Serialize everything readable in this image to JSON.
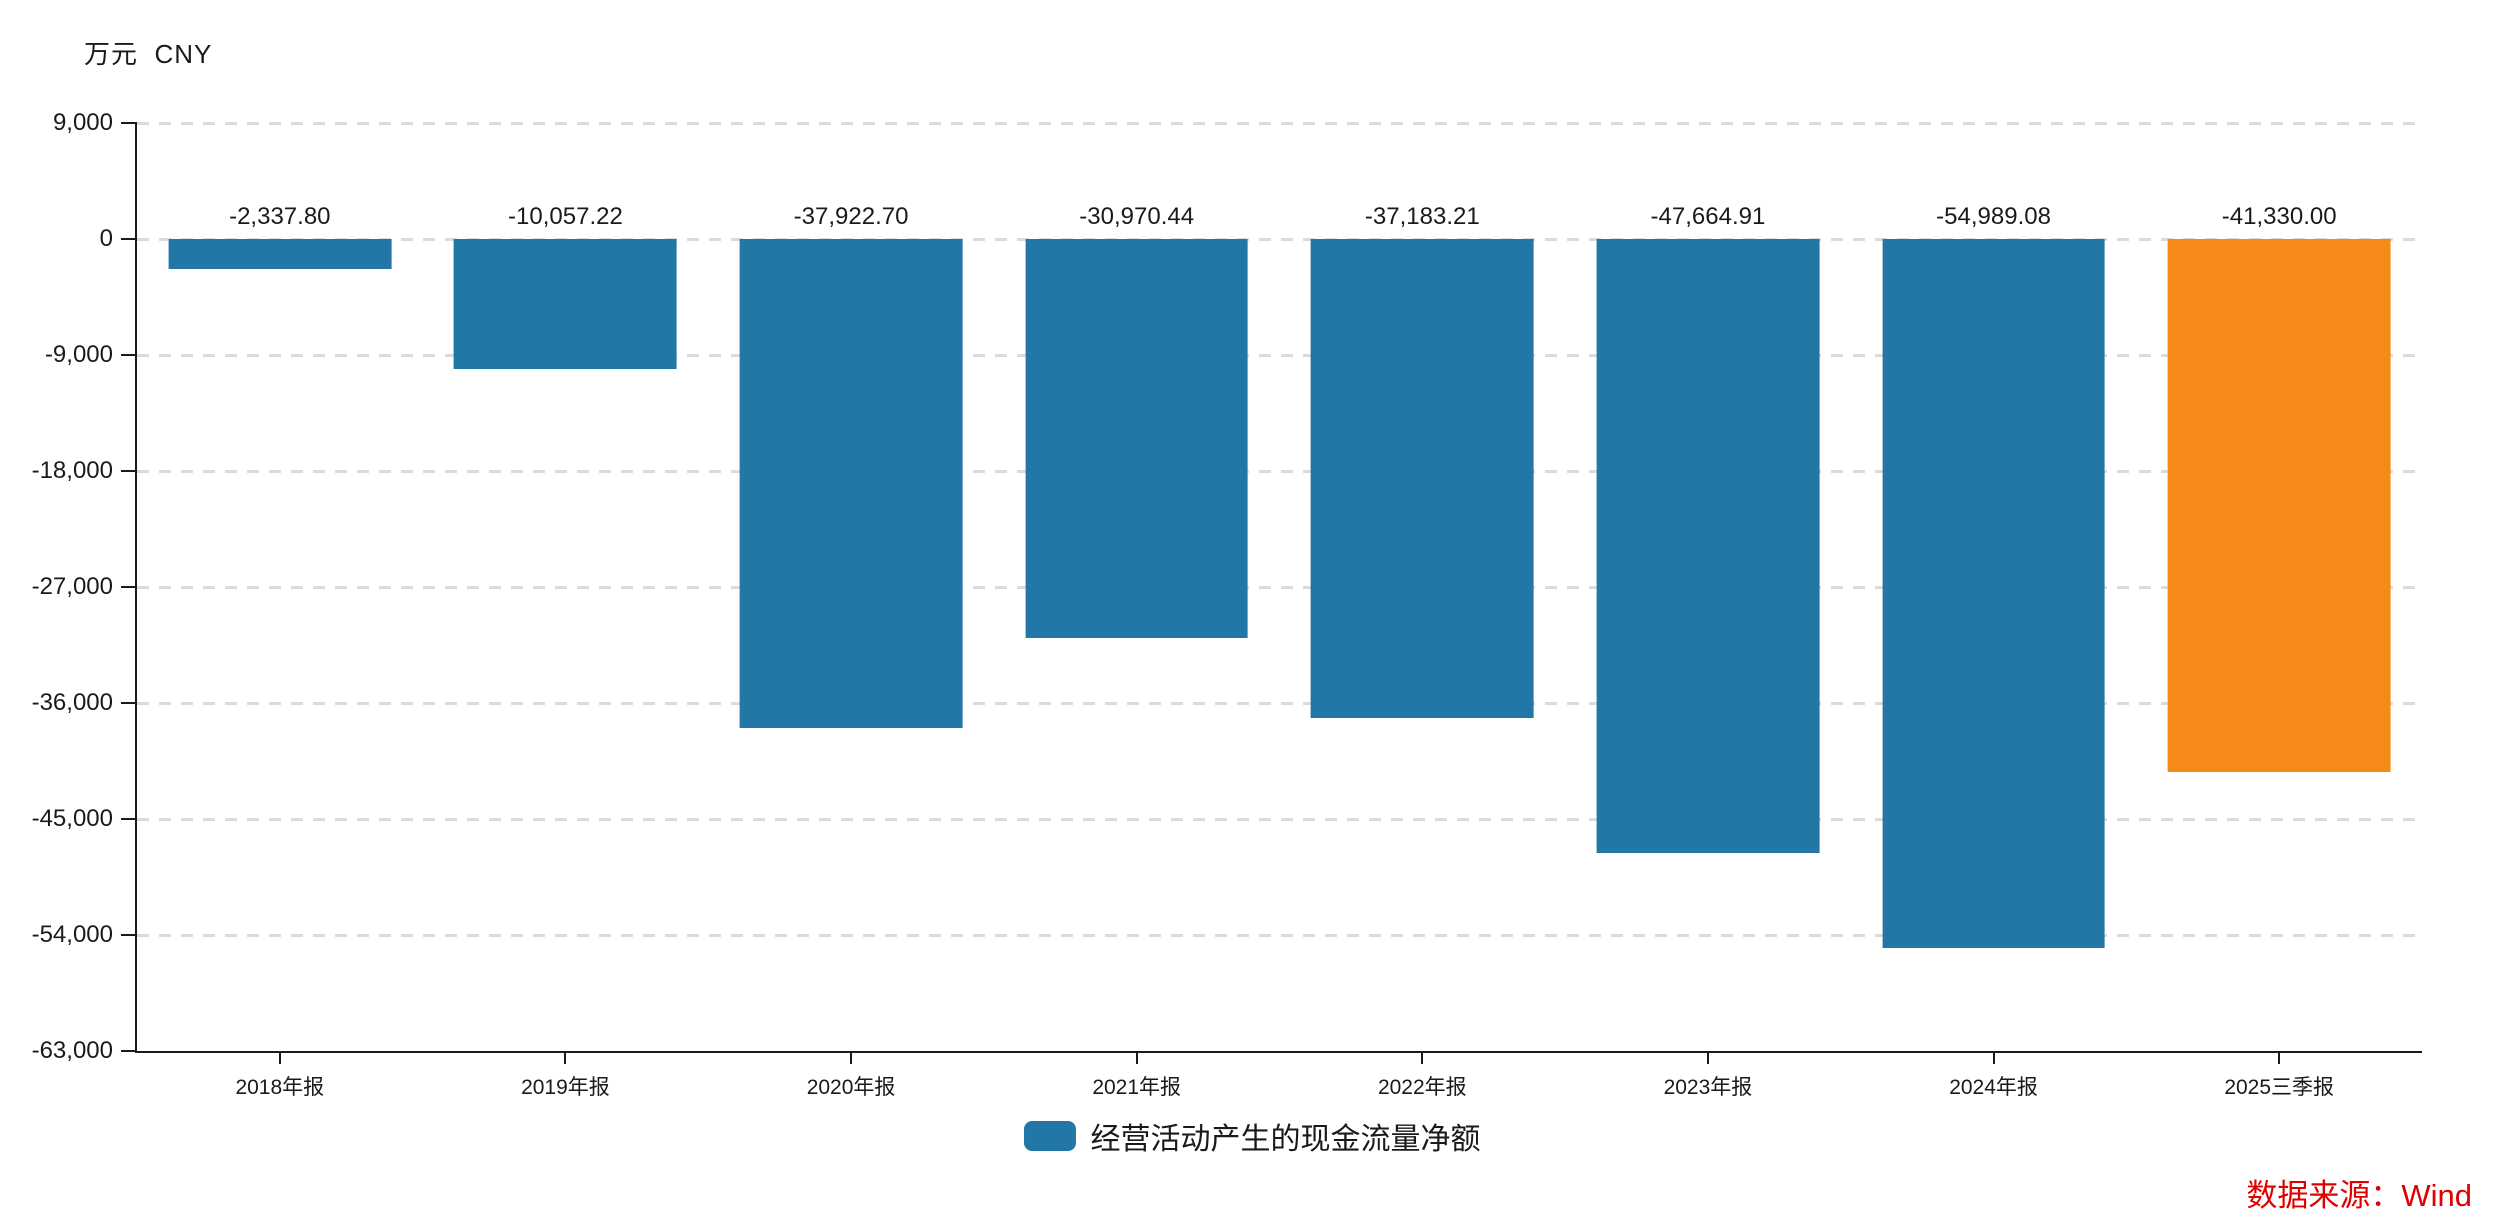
{
  "chart_data": {
    "type": "bar",
    "title": "",
    "unit_label": "万元  CNY",
    "categories": [
      "2018年报",
      "2019年报",
      "2020年报",
      "2021年报",
      "2022年报",
      "2023年报",
      "2024年报",
      "2025三季报"
    ],
    "series": [
      {
        "name": "经营活动产生的现金流量净额",
        "values": [
          -2337.8,
          -10057.22,
          -37922.7,
          -30970.44,
          -37183.21,
          -47664.91,
          -54989.08,
          -41330.0
        ]
      }
    ],
    "value_labels": [
      "-2,337.80",
      "-10,057.22",
      "-37,922.70",
      "-30,970.44",
      "-37,183.21",
      "-47,664.91",
      "-54,989.08",
      "-41,330.00"
    ],
    "ylim": [
      -63000,
      9000
    ],
    "ytick_step": 9000,
    "ytick_labels": [
      "9,000",
      "0",
      "-9,000",
      "-18,000",
      "-27,000",
      "-36,000",
      "-45,000",
      "-54,000",
      "-63,000"
    ],
    "grid": true,
    "legend_position": "bottom",
    "bar_colors": [
      "#2377A6",
      "#2377A6",
      "#2377A6",
      "#2377A6",
      "#2377A6",
      "#2377A6",
      "#2377A6",
      "#F68A18"
    ]
  },
  "legend": {
    "label": "经营活动产生的现金流量净额",
    "swatch_color": "#2377A6"
  },
  "footer": {
    "source": "数据来源：Wind"
  },
  "colors": {
    "bar": "#2377A6",
    "highlight": "#F68A18",
    "grid": "#DBDBDB",
    "axis": "#1A1A1A",
    "text": "#1A1A1A",
    "source": "#E00000"
  }
}
